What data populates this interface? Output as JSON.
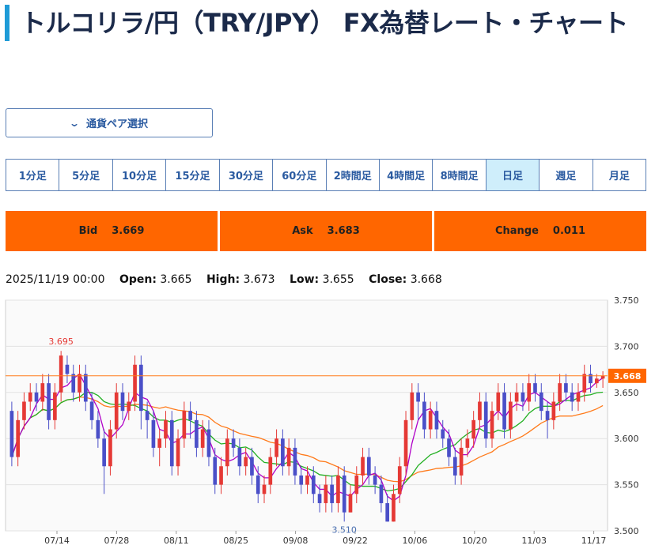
{
  "header": {
    "title": "トルコリラ/円（TRY/JPY） FX為替レート・チャート"
  },
  "pair_select": {
    "label": "通貨ペア選択"
  },
  "timeframes": [
    "1分足",
    "5分足",
    "10分足",
    "15分足",
    "30分足",
    "60分足",
    "2時間足",
    "4時間足",
    "8時間足",
    "日足",
    "週足",
    "月足"
  ],
  "active_timeframe": "日足",
  "quotes": {
    "bid": {
      "label": "Bid",
      "value": "3.669"
    },
    "ask": {
      "label": "Ask",
      "value": "3.683"
    },
    "change": {
      "label": "Change",
      "value": "0.011"
    }
  },
  "ohlc": {
    "datetime": "2025/11/19 00:00",
    "open_label": "Open:",
    "open": "3.665",
    "high_label": "High:",
    "high": "3.673",
    "low_label": "Low:",
    "low": "3.655",
    "close_label": "Close:",
    "close": "3.668"
  },
  "colors": {
    "accent": "#1e9bd7",
    "quote_bg": "#ff6600",
    "up": "#e53935",
    "down": "#4a4fc8",
    "ma_short": "#b000c8",
    "ma_mid": "#22b022",
    "ma_long": "#ff7a1a"
  },
  "chart_data": {
    "type": "candlestick",
    "y_ticks": [
      "3.750",
      "3.700",
      "3.650",
      "3.600",
      "3.550",
      "3.500"
    ],
    "ylim": [
      3.5,
      3.75
    ],
    "x_ticks": [
      "07/14",
      "07/28",
      "08/11",
      "08/25",
      "09/08",
      "09/22",
      "10/06",
      "10/20",
      "11/03",
      "11/17"
    ],
    "current_price": "3.668",
    "high_annotation": "3.695",
    "low_annotation": "3.510",
    "candles": [
      [
        3.63,
        3.58,
        3.64,
        3.57
      ],
      [
        3.58,
        3.62,
        3.63,
        3.57
      ],
      [
        3.62,
        3.64,
        3.65,
        3.61
      ],
      [
        3.64,
        3.65,
        3.66,
        3.63
      ],
      [
        3.65,
        3.64,
        3.66,
        3.63
      ],
      [
        3.64,
        3.66,
        3.67,
        3.63
      ],
      [
        3.66,
        3.62,
        3.67,
        3.61
      ],
      [
        3.62,
        3.65,
        3.66,
        3.61
      ],
      [
        3.65,
        3.69,
        3.695,
        3.64
      ],
      [
        3.68,
        3.67,
        3.69,
        3.66
      ],
      [
        3.67,
        3.65,
        3.68,
        3.64
      ],
      [
        3.65,
        3.67,
        3.68,
        3.64
      ],
      [
        3.67,
        3.64,
        3.68,
        3.63
      ],
      [
        3.64,
        3.62,
        3.65,
        3.61
      ],
      [
        3.62,
        3.6,
        3.63,
        3.59
      ],
      [
        3.6,
        3.57,
        3.61,
        3.54
      ],
      [
        3.57,
        3.61,
        3.62,
        3.56
      ],
      [
        3.61,
        3.65,
        3.66,
        3.6
      ],
      [
        3.65,
        3.63,
        3.66,
        3.62
      ],
      [
        3.63,
        3.64,
        3.65,
        3.62
      ],
      [
        3.64,
        3.68,
        3.69,
        3.63
      ],
      [
        3.68,
        3.63,
        3.69,
        3.61
      ],
      [
        3.63,
        3.62,
        3.64,
        3.6
      ],
      [
        3.62,
        3.59,
        3.63,
        3.58
      ],
      [
        3.59,
        3.6,
        3.61,
        3.57
      ],
      [
        3.6,
        3.62,
        3.63,
        3.59
      ],
      [
        3.62,
        3.57,
        3.63,
        3.56
      ],
      [
        3.57,
        3.6,
        3.61,
        3.56
      ],
      [
        3.6,
        3.63,
        3.64,
        3.59
      ],
      [
        3.63,
        3.62,
        3.64,
        3.6
      ],
      [
        3.62,
        3.59,
        3.63,
        3.58
      ],
      [
        3.59,
        3.61,
        3.62,
        3.58
      ],
      [
        3.61,
        3.58,
        3.62,
        3.57
      ],
      [
        3.58,
        3.55,
        3.59,
        3.54
      ],
      [
        3.55,
        3.57,
        3.58,
        3.54
      ],
      [
        3.57,
        3.6,
        3.61,
        3.56
      ],
      [
        3.6,
        3.59,
        3.61,
        3.58
      ],
      [
        3.59,
        3.57,
        3.6,
        3.56
      ],
      [
        3.57,
        3.58,
        3.59,
        3.56
      ],
      [
        3.58,
        3.56,
        3.59,
        3.55
      ],
      [
        3.56,
        3.54,
        3.57,
        3.53
      ],
      [
        3.54,
        3.55,
        3.56,
        3.53
      ],
      [
        3.55,
        3.58,
        3.59,
        3.54
      ],
      [
        3.58,
        3.6,
        3.61,
        3.57
      ],
      [
        3.6,
        3.57,
        3.61,
        3.56
      ],
      [
        3.57,
        3.59,
        3.6,
        3.56
      ],
      [
        3.59,
        3.56,
        3.6,
        3.55
      ],
      [
        3.56,
        3.55,
        3.57,
        3.54
      ],
      [
        3.55,
        3.56,
        3.57,
        3.54
      ],
      [
        3.56,
        3.54,
        3.57,
        3.53
      ],
      [
        3.54,
        3.53,
        3.55,
        3.52
      ],
      [
        3.53,
        3.55,
        3.56,
        3.52
      ],
      [
        3.55,
        3.53,
        3.56,
        3.52
      ],
      [
        3.53,
        3.56,
        3.57,
        3.52
      ],
      [
        3.56,
        3.52,
        3.57,
        3.51
      ],
      [
        3.52,
        3.54,
        3.55,
        3.52
      ],
      [
        3.54,
        3.56,
        3.57,
        3.53
      ],
      [
        3.56,
        3.58,
        3.59,
        3.55
      ],
      [
        3.58,
        3.56,
        3.59,
        3.55
      ],
      [
        3.56,
        3.55,
        3.57,
        3.54
      ],
      [
        3.55,
        3.53,
        3.56,
        3.52
      ],
      [
        3.53,
        3.51,
        3.54,
        3.51
      ],
      [
        3.51,
        3.54,
        3.55,
        3.51
      ],
      [
        3.54,
        3.57,
        3.58,
        3.53
      ],
      [
        3.57,
        3.62,
        3.63,
        3.56
      ],
      [
        3.62,
        3.65,
        3.66,
        3.61
      ],
      [
        3.65,
        3.64,
        3.66,
        3.62
      ],
      [
        3.64,
        3.61,
        3.65,
        3.6
      ],
      [
        3.61,
        3.63,
        3.64,
        3.6
      ],
      [
        3.63,
        3.61,
        3.64,
        3.6
      ],
      [
        3.61,
        3.6,
        3.62,
        3.59
      ],
      [
        3.6,
        3.58,
        3.61,
        3.57
      ],
      [
        3.58,
        3.56,
        3.59,
        3.55
      ],
      [
        3.56,
        3.59,
        3.6,
        3.55
      ],
      [
        3.59,
        3.6,
        3.61,
        3.58
      ],
      [
        3.6,
        3.62,
        3.63,
        3.59
      ],
      [
        3.62,
        3.64,
        3.65,
        3.61
      ],
      [
        3.64,
        3.6,
        3.65,
        3.59
      ],
      [
        3.6,
        3.63,
        3.64,
        3.59
      ],
      [
        3.63,
        3.65,
        3.66,
        3.62
      ],
      [
        3.65,
        3.61,
        3.66,
        3.6
      ],
      [
        3.61,
        3.64,
        3.65,
        3.6
      ],
      [
        3.64,
        3.65,
        3.66,
        3.63
      ],
      [
        3.65,
        3.64,
        3.66,
        3.63
      ],
      [
        3.64,
        3.66,
        3.67,
        3.63
      ],
      [
        3.66,
        3.65,
        3.67,
        3.64
      ],
      [
        3.65,
        3.63,
        3.66,
        3.62
      ],
      [
        3.63,
        3.62,
        3.64,
        3.6
      ],
      [
        3.62,
        3.64,
        3.65,
        3.61
      ],
      [
        3.64,
        3.66,
        3.67,
        3.63
      ],
      [
        3.66,
        3.65,
        3.67,
        3.64
      ],
      [
        3.65,
        3.64,
        3.66,
        3.63
      ],
      [
        3.64,
        3.65,
        3.66,
        3.63
      ],
      [
        3.65,
        3.67,
        3.68,
        3.64
      ],
      [
        3.67,
        3.66,
        3.68,
        3.65
      ],
      [
        3.66,
        3.665,
        3.67,
        3.655
      ],
      [
        3.665,
        3.668,
        3.673,
        3.655
      ]
    ]
  }
}
